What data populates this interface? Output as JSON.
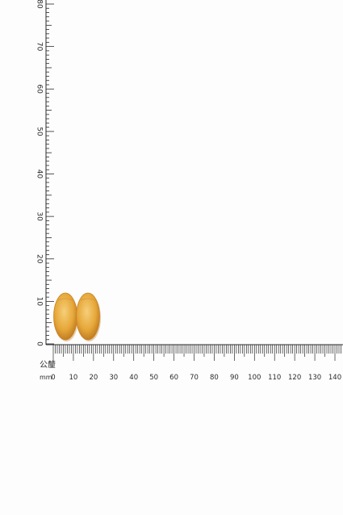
{
  "photo": {
    "background": "#fdfdfd",
    "ruler_color": "#2a2a2a",
    "tablet_color": "#e6a739",
    "tablet_shadow": "#b9741c",
    "tablet_highlight": "#f6cf7a"
  },
  "ruler": {
    "vertical_labels": [
      "0",
      "10",
      "20",
      "30",
      "40",
      "50",
      "60",
      "70",
      "80"
    ],
    "horizontal_labels": [
      "0",
      "10",
      "20",
      "30",
      "40",
      "50",
      "60",
      "70",
      "80",
      "90",
      "100",
      "110",
      "120",
      "130",
      "140"
    ],
    "unit_chinese": "公釐",
    "unit": "mm"
  },
  "tablets": [
    {
      "name": "tablet-left",
      "mark": ""
    },
    {
      "name": "tablet-right",
      "mark": ""
    }
  ]
}
